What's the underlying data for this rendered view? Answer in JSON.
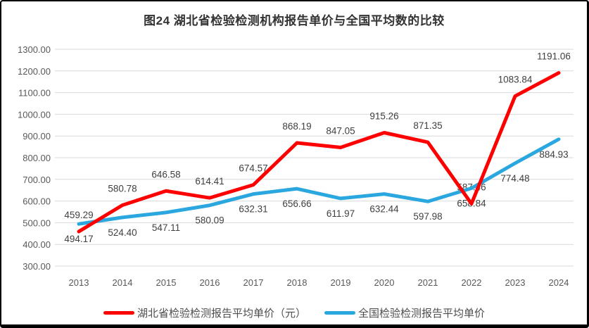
{
  "title": "图24 湖北省检验检测机构报告单价与全国平均数的比较",
  "chart_data": {
    "type": "line",
    "title": "图24 湖北省检验检测机构报告单价与全国平均数的比较",
    "x": [
      "2013",
      "2014",
      "2015",
      "2016",
      "2017",
      "2018",
      "2019",
      "2020",
      "2021",
      "2022",
      "2023",
      "2024"
    ],
    "series": [
      {
        "name": "湖北省检验检测报告平均单价（元）",
        "color": "#fe0000",
        "label_position": "above",
        "values": [
          459.29,
          580.78,
          646.58,
          614.41,
          674.57,
          868.19,
          847.05,
          915.26,
          871.35,
          587.46,
          1083.84,
          1191.06
        ]
      },
      {
        "name": "全国检验检测报告平均单价",
        "color": "#2ba7e0",
        "label_position": "below",
        "values": [
          494.17,
          524.4,
          547.11,
          580.09,
          632.31,
          656.66,
          611.97,
          632.44,
          597.98,
          658.84,
          774.48,
          884.93
        ]
      }
    ],
    "ylim": [
      300,
      1300
    ],
    "ytick_step": 100,
    "ytick_format": "0.00",
    "data_labels": "0.00",
    "grid": "horizontal",
    "grid_color": "#d9d9d9",
    "axis_text_color": "#595959",
    "legend_position": "bottom"
  }
}
